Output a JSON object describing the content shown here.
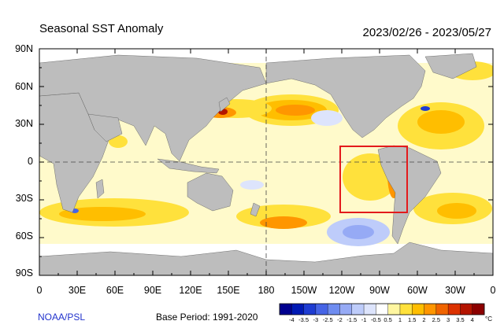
{
  "map": {
    "title": "Seasonal SST Anomaly",
    "date_range": "2023/02/26 - 2023/05/27",
    "lat_labels": [
      "90N",
      "60N",
      "30N",
      "0",
      "30S",
      "60S",
      "90S"
    ],
    "lon_labels": [
      "0",
      "30E",
      "60E",
      "90E",
      "120E",
      "150E",
      "180",
      "150W",
      "120W",
      "90W",
      "60W",
      "30W",
      "0"
    ],
    "source": "NOAA/PSL",
    "base_period": "Base Period: 1991-2020",
    "highlight_box_color": "#e31a1c",
    "land_color": "#bdbdbd"
  },
  "colorbar": {
    "labels": [
      "-4",
      "-3.5",
      "-3",
      "-2.5",
      "-2",
      "-1.5",
      "-1",
      "-0.5",
      "0.5",
      "1",
      "1.5",
      "2",
      "2.5",
      "3",
      "3.5",
      "4"
    ],
    "colors": [
      "#00008f",
      "#0019b4",
      "#1e3cd2",
      "#4664e6",
      "#6e8cf0",
      "#96aaf5",
      "#beccfa",
      "#dde4fc",
      "#ffffff",
      "#fff6a0",
      "#ffe13c",
      "#ffbe00",
      "#ff9600",
      "#f06400",
      "#dc3200",
      "#b41400",
      "#8c0000"
    ],
    "unit": "°C"
  }
}
